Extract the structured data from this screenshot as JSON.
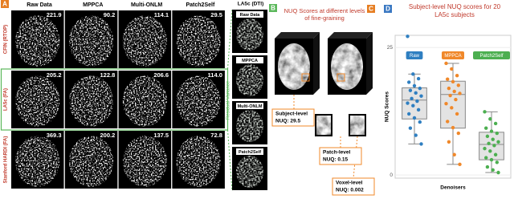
{
  "figure": {
    "panel_a": {
      "label": "A",
      "columns": [
        "Raw Data",
        "MPPCA",
        "Multi-ONLM",
        "Patch2Self"
      ],
      "rows": [
        {
          "label": "CFIN (RTOP)",
          "scores": [
            "221.9",
            "90.2",
            "114.1",
            "29.5"
          ]
        },
        {
          "label": "LA5c (FA)",
          "scores": [
            "205.2",
            "122.8",
            "206.6",
            "114.0"
          ]
        },
        {
          "label": "Stanford HARDI (FA)",
          "scores": [
            "369.3",
            "200.2",
            "137.5",
            "72.8"
          ]
        }
      ]
    },
    "panel_b": {
      "label": "B",
      "title": "LA5c (DTI)",
      "side_label": "Residual Variance",
      "images": [
        "Raw Data",
        "MPPCA",
        "Multi-ONLM",
        "Patch2Self"
      ]
    },
    "panel_c": {
      "label": "C",
      "title": "NUQ Scores at different levels of fine-graining",
      "levels": [
        {
          "name": "Subject-level",
          "score": "NUQ: 29.5"
        },
        {
          "name": "Patch-level",
          "score": "NUQ: 0.15"
        },
        {
          "name": "Voxel-level",
          "score": "NUQ: 0.002"
        }
      ]
    }
  },
  "chart_data": {
    "type": "box",
    "label": "D",
    "title": "Subject-level NUQ scores for 20 LA5c subjects",
    "ylabel": "NUQ Scores",
    "xlabel": "Denoisers",
    "ylim": [
      -0.6,
      27.4
    ],
    "yticks": [
      0,
      25
    ],
    "legend": "top",
    "series": [
      {
        "name": "Raw",
        "color": "#2f7fc1",
        "values": [
          27.2,
          19.8,
          18.9,
          18.2,
          17.5,
          17.0,
          16.6,
          16.1,
          15.5,
          15.0,
          14.5,
          14.1,
          13.6,
          12.8,
          12.0,
          11.2,
          10.4,
          9.2,
          7.8,
          6.1
        ],
        "box": {
          "whislo": 6.1,
          "q1": 11.0,
          "med": 14.7,
          "q3": 17.1,
          "whishi": 19.8
        }
      },
      {
        "name": "MPPCA",
        "color": "#f0882a",
        "values": [
          21.9,
          20.8,
          19.5,
          18.8,
          18.3,
          17.6,
          17.0,
          16.4,
          16.0,
          15.6,
          14.8,
          14.0,
          13.2,
          12.0,
          10.5,
          9.3,
          8.2,
          6.5,
          4.0,
          2.1
        ],
        "box": {
          "whislo": 2.1,
          "q1": 9.2,
          "med": 15.8,
          "q3": 18.4,
          "whishi": 21.9
        }
      },
      {
        "name": "Patch2Self",
        "color": "#4caf50",
        "values": [
          12.4,
          11.0,
          10.1,
          9.2,
          8.6,
          8.2,
          7.6,
          7.0,
          6.5,
          6.2,
          5.8,
          5.2,
          4.7,
          4.0,
          3.4,
          3.0,
          2.5,
          1.6,
          1.0,
          0.5
        ],
        "box": {
          "whislo": 0.5,
          "q1": 3.0,
          "med": 6.0,
          "q3": 8.4,
          "whishi": 12.4
        }
      }
    ]
  }
}
